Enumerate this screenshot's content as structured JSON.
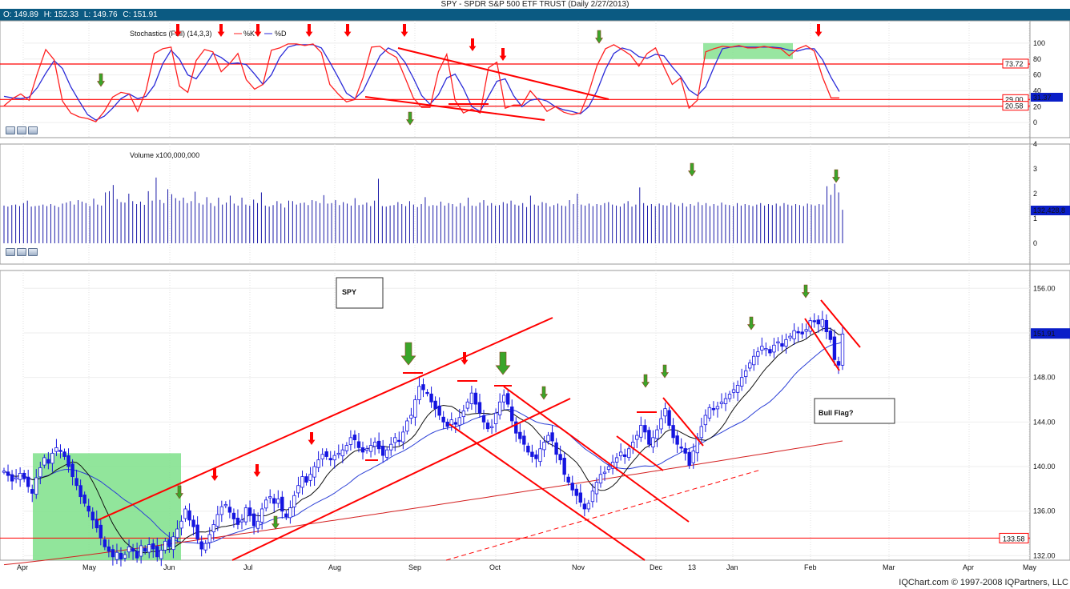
{
  "title": "SPY - SPDR S&P 500 ETF TRUST (Daily 2/27/2013)",
  "ohlc": {
    "o": "O: 149.89",
    "h": "H: 152.33",
    "l": "L: 149.76",
    "c": "C: 151.91"
  },
  "footer": "IQChart.com © 1997-2008 IQPartners, LLC",
  "colors": {
    "up": "#1515e0",
    "down": "#1515e0",
    "k": "#ff2020",
    "d": "#2a2ad8",
    "ann": "#ff0000",
    "green_arrow": "#3aa52a",
    "highlight": "#7ee08a",
    "ma_short": "#111111",
    "ma_mid": "#2b3fd6",
    "ma_long": "#d42020",
    "price_box": "#0a1ec8"
  },
  "icons": [
    "down-arrow-icon",
    "zoom-button-icon"
  ],
  "chart_data": [
    {
      "type": "line",
      "name": "stochastics",
      "label": "Stochastics (Full) (14,3,3)",
      "legend": [
        "%K",
        "%D"
      ],
      "ylim": [
        -10,
        110
      ],
      "yticks": [
        "100",
        "80",
        "60",
        "40",
        "20",
        "0"
      ],
      "levels": [
        {
          "value": 73.72,
          "label": "73.72"
        },
        {
          "value": 29.0,
          "label": "29.00"
        },
        {
          "value": 20.58,
          "label": "20.58"
        }
      ],
      "current_label": "31.37",
      "k": [
        21,
        30,
        36,
        28,
        62,
        92,
        79,
        27,
        12,
        7,
        5,
        1,
        14,
        32,
        38,
        36,
        14,
        40,
        87,
        93,
        95,
        46,
        38,
        78,
        92,
        89,
        64,
        74,
        87,
        54,
        42,
        48,
        91,
        94,
        99,
        99,
        97,
        99,
        88,
        48,
        36,
        26,
        29,
        57,
        95,
        96,
        88,
        82,
        57,
        31,
        19,
        19,
        64,
        86,
        28,
        12,
        17,
        12,
        69,
        76,
        18,
        22,
        22,
        40,
        28,
        14,
        20,
        13,
        10,
        12,
        38,
        72,
        93,
        98,
        92,
        85,
        71,
        87,
        94,
        70,
        48,
        56,
        18,
        28,
        89,
        93,
        96,
        95,
        97,
        94,
        94,
        96,
        94,
        93,
        84,
        93,
        97,
        90,
        57,
        31,
        31
      ],
      "d": [
        33,
        31,
        30,
        32,
        44,
        62,
        78,
        68,
        45,
        27,
        10,
        3,
        8,
        18,
        30,
        36,
        30,
        33,
        47,
        74,
        91,
        80,
        60,
        55,
        70,
        87,
        82,
        74,
        75,
        73,
        61,
        48,
        60,
        82,
        95,
        98,
        98,
        98,
        94,
        76,
        57,
        37,
        30,
        40,
        62,
        84,
        94,
        89,
        76,
        56,
        34,
        23,
        35,
        56,
        61,
        43,
        20,
        14,
        33,
        52,
        55,
        34,
        20,
        28,
        30,
        27,
        20,
        16,
        14,
        11,
        20,
        40,
        67,
        87,
        94,
        91,
        83,
        81,
        86,
        84,
        70,
        58,
        41,
        34,
        45,
        70,
        93,
        95,
        96,
        95,
        95,
        95,
        95,
        94,
        91,
        90,
        93,
        93,
        79,
        57,
        39
      ]
    },
    {
      "type": "bar",
      "name": "volume",
      "label": "Volume x100,000,000",
      "ylim": [
        0,
        4
      ],
      "yticks": [
        "4",
        "3",
        "2",
        "1",
        "0"
      ],
      "current_label": "132,428,8",
      "values": [
        1.52,
        1.48,
        1.54,
        1.56,
        1.5,
        1.62,
        1.72,
        1.48,
        1.5,
        1.52,
        1.56,
        1.5,
        1.58,
        1.52,
        1.46,
        1.6,
        1.64,
        1.7,
        1.56,
        1.74,
        1.68,
        1.62,
        1.5,
        1.8,
        1.56,
        1.52,
        2.05,
        2.1,
        2.35,
        1.78,
        1.66,
        1.64,
        2.0,
        1.7,
        1.58,
        1.68,
        1.55,
        2.1,
        1.72,
        2.65,
        1.75,
        1.62,
        2.18,
        1.98,
        1.82,
        1.72,
        1.84,
        1.62,
        1.7,
        2.08,
        1.62,
        1.56,
        1.86,
        1.62,
        1.5,
        1.84,
        1.56,
        1.64,
        1.92,
        1.6,
        1.52,
        1.84,
        1.56,
        1.52,
        1.76,
        1.62,
        2.05,
        1.52,
        1.48,
        1.54,
        1.7,
        1.6,
        1.44,
        1.72,
        1.7,
        1.56,
        1.62,
        1.64,
        1.54,
        1.74,
        1.7,
        1.62,
        1.94,
        1.6,
        1.62,
        1.74,
        1.54,
        1.66,
        1.6,
        1.52,
        1.82,
        1.54,
        1.56,
        1.64,
        1.5,
        1.72,
        2.6,
        1.5,
        1.48,
        1.52,
        1.54,
        1.66,
        1.58,
        1.5,
        1.7,
        1.56,
        1.46,
        1.58,
        1.86,
        1.5,
        1.54,
        1.52,
        1.68,
        1.52,
        1.62,
        1.58,
        1.48,
        1.62,
        1.5,
        1.84,
        1.52,
        1.5,
        1.64,
        1.74,
        1.52,
        1.62,
        1.52,
        1.54,
        1.66,
        1.6,
        1.72,
        1.56,
        1.52,
        1.62,
        1.46,
        1.92,
        1.56,
        1.52,
        1.66,
        1.62,
        1.48,
        1.54,
        1.6,
        1.52,
        1.5,
        1.74,
        1.58,
        2.0,
        1.56,
        1.52,
        1.6,
        1.5,
        1.58,
        1.54,
        1.62,
        1.66,
        1.56,
        1.52,
        1.48,
        1.6,
        1.7,
        1.48,
        1.56,
        2.25,
        1.62,
        1.52,
        1.58,
        1.5,
        1.6,
        1.54,
        1.52,
        1.64,
        1.56,
        1.5,
        1.62,
        1.48,
        1.58,
        1.52,
        1.66,
        1.54,
        1.62,
        1.5,
        1.58,
        1.52,
        1.64,
        1.56,
        1.54,
        1.5,
        1.62,
        1.52,
        1.58,
        1.54,
        1.5,
        1.56,
        1.62,
        1.52,
        1.58,
        1.54,
        1.6,
        1.5,
        1.62,
        1.56,
        1.52,
        1.58,
        1.54,
        1.5,
        1.6,
        1.56,
        1.52,
        1.58,
        1.56,
        2.3,
        1.95,
        2.4,
        2.05,
        1.35
      ]
    },
    {
      "type": "candlestick",
      "name": "price",
      "label": "SPY",
      "ylim": [
        131.6,
        157.6
      ],
      "yticks": [
        "156.00",
        "152.00",
        "148.00",
        "144.00",
        "140.00",
        "136.00",
        "132.00"
      ],
      "xticks": [
        "Apr",
        "May",
        "Jun",
        "Jul",
        "Aug",
        "Sep",
        "Oct",
        "Nov",
        "Dec",
        "13",
        "Jan",
        "Feb",
        "Mar",
        "Apr",
        "May"
      ],
      "current_label": "151.91",
      "level_label": "133.58",
      "level": 133.58,
      "annotation": "Bull Flag?",
      "closes": [
        139.6,
        139.2,
        138.7,
        139.0,
        139.4,
        138.9,
        138.2,
        137.6,
        139.0,
        139.9,
        140.8,
        140.3,
        141.2,
        141.7,
        141.4,
        140.9,
        140.0,
        139.1,
        138.3,
        137.3,
        136.7,
        136.0,
        135.2,
        134.5,
        133.6,
        132.8,
        132.4,
        131.9,
        132.3,
        131.7,
        132.1,
        132.8,
        132.4,
        131.8,
        132.9,
        132.4,
        133.0,
        132.6,
        131.9,
        132.5,
        133.3,
        132.8,
        133.7,
        134.4,
        135.1,
        136.2,
        135.2,
        134.6,
        133.5,
        132.6,
        133.1,
        133.9,
        134.8,
        135.7,
        136.4,
        136.6,
        135.9,
        135.3,
        134.8,
        135.2,
        136.3,
        135.6,
        134.7,
        135.1,
        136.2,
        137.0,
        137.3,
        136.7,
        137.1,
        136.0,
        135.5,
        136.3,
        137.4,
        138.3,
        139.1,
        138.6,
        139.3,
        140.0,
        140.6,
        141.1,
        140.9,
        140.6,
        141.0,
        141.2,
        141.5,
        141.9,
        142.6,
        142.4,
        141.7,
        141.3,
        141.6,
        141.9,
        142.2,
        141.6,
        141.0,
        141.5,
        142.0,
        142.6,
        142.3,
        143.1,
        144.1,
        144.6,
        146.0,
        147.2,
        146.9,
        146.6,
        145.8,
        145.2,
        144.6,
        144.0,
        143.6,
        144.2,
        143.8,
        144.4,
        145.0,
        145.8,
        146.6,
        145.6,
        144.8,
        144.0,
        143.4,
        143.6,
        144.8,
        145.8,
        146.4,
        145.6,
        144.1,
        143.0,
        142.5,
        142.0,
        141.3,
        140.9,
        140.7,
        141.6,
        142.2,
        142.8,
        142.3,
        141.1,
        140.6,
        139.3,
        138.6,
        137.9,
        137.4,
        136.8,
        136.2,
        136.7,
        137.8,
        138.6,
        139.3,
        139.5,
        140.0,
        140.4,
        140.8,
        141.3,
        140.9,
        141.6,
        142.2,
        142.8,
        143.7,
        143.1,
        142.0,
        142.6,
        143.3,
        144.3,
        145.2,
        143.7,
        142.6,
        142.0,
        141.7,
        141.2,
        140.1,
        141.4,
        142.6,
        143.6,
        144.6,
        145.3,
        145.1,
        145.4,
        145.8,
        146.1,
        146.5,
        146.9,
        147.3,
        148.0,
        148.6,
        149.3,
        149.9,
        150.3,
        150.8,
        150.6,
        150.2,
        150.9,
        151.2,
        150.8,
        151.4,
        151.7,
        152.2,
        152.0,
        151.9,
        152.3,
        153.1,
        153.0,
        152.8,
        153.2,
        152.1,
        151.4,
        149.6,
        149.1,
        151.9
      ]
    }
  ]
}
